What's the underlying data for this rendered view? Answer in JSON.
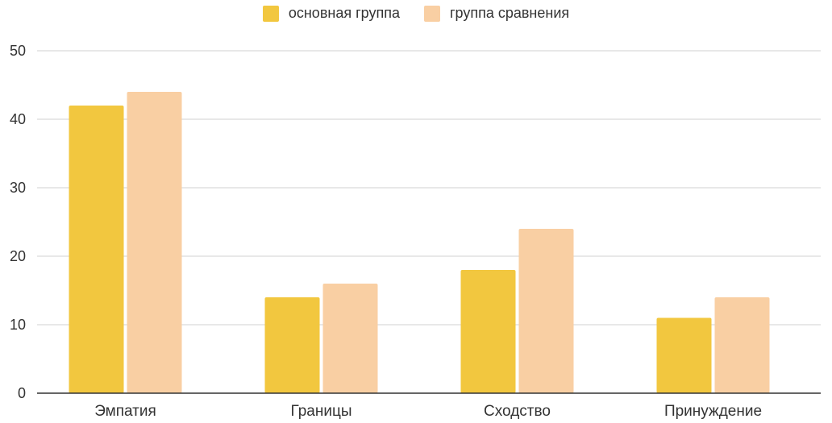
{
  "chart_data": {
    "type": "bar",
    "title": "",
    "xlabel": "",
    "ylabel": "",
    "categories": [
      "Эмпатия",
      "Границы",
      "Сходство",
      "Принуждение"
    ],
    "series": [
      {
        "name": "основная группа",
        "color": "#F2C73F",
        "values": [
          42,
          14,
          18,
          11
        ]
      },
      {
        "name": "группа сравнения",
        "color": "#F9CFA3",
        "values": [
          44,
          16,
          24,
          14
        ]
      }
    ],
    "ylim": [
      0,
      50
    ],
    "yticks": [
      0,
      10,
      20,
      30,
      40,
      50
    ],
    "grid": true,
    "legend_position": "top-center"
  }
}
